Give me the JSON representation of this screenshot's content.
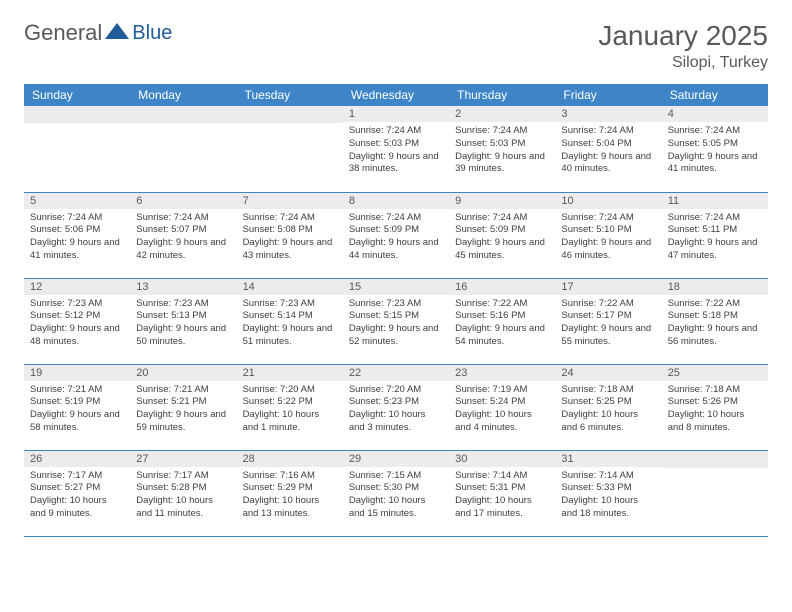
{
  "logo": {
    "text1": "General",
    "text2": "Blue"
  },
  "title": "January 2025",
  "location": "Silopi, Turkey",
  "colors": {
    "header_bg": "#3d85c6",
    "header_text": "#ffffff",
    "daynum_bg": "#ececec",
    "text_gray": "#595959",
    "info_text": "#404040",
    "border": "#3d85c6",
    "logo_accent": "#1f5c99"
  },
  "dayNames": [
    "Sunday",
    "Monday",
    "Tuesday",
    "Wednesday",
    "Thursday",
    "Friday",
    "Saturday"
  ],
  "weeks": [
    [
      null,
      null,
      null,
      {
        "n": "1",
        "sr": "7:24 AM",
        "ss": "5:03 PM",
        "dl": "9 hours and 38 minutes."
      },
      {
        "n": "2",
        "sr": "7:24 AM",
        "ss": "5:03 PM",
        "dl": "9 hours and 39 minutes."
      },
      {
        "n": "3",
        "sr": "7:24 AM",
        "ss": "5:04 PM",
        "dl": "9 hours and 40 minutes."
      },
      {
        "n": "4",
        "sr": "7:24 AM",
        "ss": "5:05 PM",
        "dl": "9 hours and 41 minutes."
      }
    ],
    [
      {
        "n": "5",
        "sr": "7:24 AM",
        "ss": "5:06 PM",
        "dl": "9 hours and 41 minutes."
      },
      {
        "n": "6",
        "sr": "7:24 AM",
        "ss": "5:07 PM",
        "dl": "9 hours and 42 minutes."
      },
      {
        "n": "7",
        "sr": "7:24 AM",
        "ss": "5:08 PM",
        "dl": "9 hours and 43 minutes."
      },
      {
        "n": "8",
        "sr": "7:24 AM",
        "ss": "5:09 PM",
        "dl": "9 hours and 44 minutes."
      },
      {
        "n": "9",
        "sr": "7:24 AM",
        "ss": "5:09 PM",
        "dl": "9 hours and 45 minutes."
      },
      {
        "n": "10",
        "sr": "7:24 AM",
        "ss": "5:10 PM",
        "dl": "9 hours and 46 minutes."
      },
      {
        "n": "11",
        "sr": "7:24 AM",
        "ss": "5:11 PM",
        "dl": "9 hours and 47 minutes."
      }
    ],
    [
      {
        "n": "12",
        "sr": "7:23 AM",
        "ss": "5:12 PM",
        "dl": "9 hours and 48 minutes."
      },
      {
        "n": "13",
        "sr": "7:23 AM",
        "ss": "5:13 PM",
        "dl": "9 hours and 50 minutes."
      },
      {
        "n": "14",
        "sr": "7:23 AM",
        "ss": "5:14 PM",
        "dl": "9 hours and 51 minutes."
      },
      {
        "n": "15",
        "sr": "7:23 AM",
        "ss": "5:15 PM",
        "dl": "9 hours and 52 minutes."
      },
      {
        "n": "16",
        "sr": "7:22 AM",
        "ss": "5:16 PM",
        "dl": "9 hours and 54 minutes."
      },
      {
        "n": "17",
        "sr": "7:22 AM",
        "ss": "5:17 PM",
        "dl": "9 hours and 55 minutes."
      },
      {
        "n": "18",
        "sr": "7:22 AM",
        "ss": "5:18 PM",
        "dl": "9 hours and 56 minutes."
      }
    ],
    [
      {
        "n": "19",
        "sr": "7:21 AM",
        "ss": "5:19 PM",
        "dl": "9 hours and 58 minutes."
      },
      {
        "n": "20",
        "sr": "7:21 AM",
        "ss": "5:21 PM",
        "dl": "9 hours and 59 minutes."
      },
      {
        "n": "21",
        "sr": "7:20 AM",
        "ss": "5:22 PM",
        "dl": "10 hours and 1 minute."
      },
      {
        "n": "22",
        "sr": "7:20 AM",
        "ss": "5:23 PM",
        "dl": "10 hours and 3 minutes."
      },
      {
        "n": "23",
        "sr": "7:19 AM",
        "ss": "5:24 PM",
        "dl": "10 hours and 4 minutes."
      },
      {
        "n": "24",
        "sr": "7:18 AM",
        "ss": "5:25 PM",
        "dl": "10 hours and 6 minutes."
      },
      {
        "n": "25",
        "sr": "7:18 AM",
        "ss": "5:26 PM",
        "dl": "10 hours and 8 minutes."
      }
    ],
    [
      {
        "n": "26",
        "sr": "7:17 AM",
        "ss": "5:27 PM",
        "dl": "10 hours and 9 minutes."
      },
      {
        "n": "27",
        "sr": "7:17 AM",
        "ss": "5:28 PM",
        "dl": "10 hours and 11 minutes."
      },
      {
        "n": "28",
        "sr": "7:16 AM",
        "ss": "5:29 PM",
        "dl": "10 hours and 13 minutes."
      },
      {
        "n": "29",
        "sr": "7:15 AM",
        "ss": "5:30 PM",
        "dl": "10 hours and 15 minutes."
      },
      {
        "n": "30",
        "sr": "7:14 AM",
        "ss": "5:31 PM",
        "dl": "10 hours and 17 minutes."
      },
      {
        "n": "31",
        "sr": "7:14 AM",
        "ss": "5:33 PM",
        "dl": "10 hours and 18 minutes."
      },
      null
    ]
  ],
  "labels": {
    "sunrise": "Sunrise: ",
    "sunset": "Sunset: ",
    "daylight": "Daylight: "
  }
}
